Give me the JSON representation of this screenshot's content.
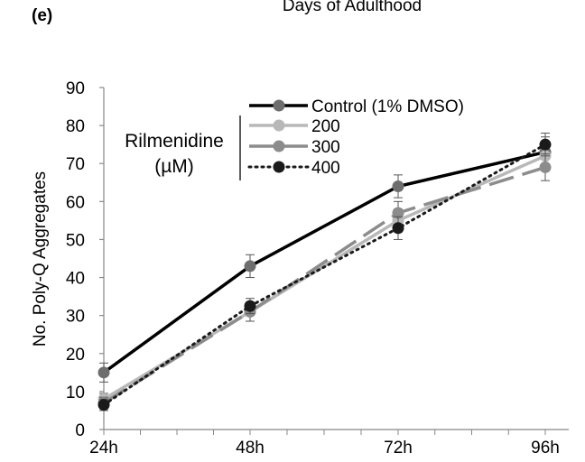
{
  "panel_label": "(e)",
  "top_label": "Days of Adulthood",
  "legend_group_label": [
    "Rilmenidine",
    "(µM)"
  ],
  "chart_data": {
    "type": "line",
    "title": "",
    "xlabel": "",
    "ylabel": "No. Poly-Q Aggregates",
    "categories": [
      "24h",
      "48h",
      "72h",
      "96h"
    ],
    "ylim": [
      0,
      90
    ],
    "yticks": [
      0,
      10,
      20,
      30,
      40,
      50,
      60,
      70,
      80,
      90
    ],
    "grid": false,
    "legend_position": "top-center",
    "series": [
      {
        "name": "Control (1% DMSO)",
        "values": [
          15,
          43,
          64,
          73
        ],
        "errors": [
          2.5,
          3,
          3,
          4
        ],
        "color": "#000000",
        "marker_color": "#6e6e6e",
        "dash": "solid"
      },
      {
        "name": "200",
        "values": [
          8,
          31,
          55,
          72
        ],
        "errors": [
          1.5,
          2.5,
          3,
          3
        ],
        "color": "#b8b8b8",
        "marker_color": "#b8b8b8",
        "dash": "solid"
      },
      {
        "name": "300",
        "values": [
          7,
          31,
          57,
          69
        ],
        "errors": [
          1.5,
          2.5,
          3,
          3.5
        ],
        "color": "#8c8c8c",
        "marker_color": "#8c8c8c",
        "dash": "long-dash"
      },
      {
        "name": "400",
        "values": [
          6.5,
          32.5,
          53,
          75
        ],
        "errors": [
          1.5,
          2,
          3,
          3
        ],
        "color": "#1a1a1a",
        "marker_color": "#1a1a1a",
        "dash": "dotted"
      }
    ]
  }
}
